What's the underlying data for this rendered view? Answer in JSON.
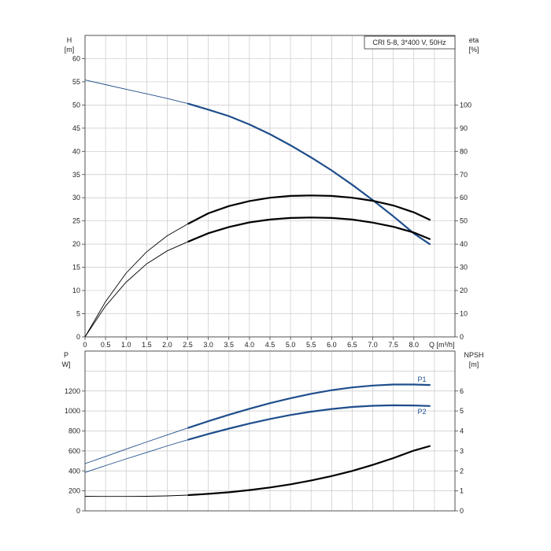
{
  "chart_data": [
    {
      "type": "line",
      "title": "CRI 5-8, 3*400 V, 50Hz",
      "ylabel_left": "H",
      "ylabel_left_unit": "[m]",
      "ylabel_right": "eta",
      "ylabel_right_unit": "[%]",
      "xlabel": "Q [m³/h]",
      "xlim": [
        0,
        9.0
      ],
      "ylim_left": [
        0,
        65
      ],
      "ylim_right": [
        0,
        130
      ],
      "grid": true,
      "x_ticks": [
        "0",
        "0.5",
        "1.0",
        "1.5",
        "2.0",
        "2.5",
        "3.0",
        "3.5",
        "4.0",
        "4.5",
        "5.0",
        "5.5",
        "6.0",
        "6.5",
        "7.0",
        "7.5",
        "8.0"
      ],
      "y_ticks_left": [
        "0",
        "5",
        "10",
        "15",
        "20",
        "25",
        "30",
        "35",
        "40",
        "45",
        "50",
        "55",
        "60"
      ],
      "y_ticks_right": [
        "0",
        "10",
        "20",
        "30",
        "40",
        "50",
        "60",
        "70",
        "80",
        "90",
        "100"
      ],
      "series": [
        {
          "axis": "left",
          "color": "#1f4e8c",
          "x": [
            0,
            0.5,
            1.0,
            1.5,
            2.0,
            2.5,
            3.0,
            3.5,
            4.0,
            4.5,
            5.0,
            5.5,
            6.0,
            6.5,
            7.0,
            7.5,
            8.0,
            8.4
          ],
          "y": [
            55.4,
            54.4,
            53.4,
            52.4,
            51.4,
            50.3,
            49.0,
            47.6,
            45.8,
            43.7,
            41.3,
            38.7,
            35.9,
            32.8,
            29.5,
            26.0,
            22.3,
            19.9
          ]
        },
        {
          "axis": "right",
          "color": "#000000",
          "x": [
            0,
            0.5,
            1.0,
            1.5,
            2.0,
            2.5,
            3.0,
            3.5,
            4.0,
            4.5,
            5.0,
            5.5,
            6.0,
            6.5,
            7.0,
            7.5,
            8.0,
            8.4
          ],
          "y": [
            0,
            15.2,
            27.5,
            36.7,
            43.6,
            48.7,
            53.3,
            56.4,
            58.6,
            60.0,
            60.8,
            61.0,
            60.8,
            60.0,
            58.7,
            56.7,
            53.7,
            50.4
          ]
        },
        {
          "axis": "right",
          "color": "#000000",
          "x": [
            0,
            0.5,
            1.0,
            1.5,
            2.0,
            2.5,
            3.0,
            3.5,
            4.0,
            4.5,
            5.0,
            5.5,
            6.0,
            6.5,
            7.0,
            7.5,
            8.0,
            8.4
          ],
          "y": [
            0,
            13.3,
            23.6,
            31.5,
            37.1,
            41.0,
            44.7,
            47.4,
            49.4,
            50.6,
            51.3,
            51.5,
            51.3,
            50.6,
            49.3,
            47.5,
            45.0,
            42.1
          ]
        }
      ]
    },
    {
      "type": "line",
      "ylabel_left": "P",
      "ylabel_left_unit": "W]",
      "ylabel_right": "NPSH",
      "ylabel_right_unit": "[m]",
      "xlim": [
        0,
        9.0
      ],
      "ylim_left": [
        0,
        1600
      ],
      "ylim_right": [
        0,
        8
      ],
      "grid": true,
      "y_ticks_left": [
        "0",
        "200",
        "400",
        "600",
        "800",
        "1000",
        "1200"
      ],
      "y_ticks_right": [
        "0",
        "1",
        "2",
        "3",
        "4",
        "5",
        "6"
      ],
      "series": [
        {
          "name": "P1",
          "axis": "left",
          "color": "#1f4e8c",
          "x": [
            0,
            0.5,
            1.0,
            1.5,
            2.0,
            2.5,
            3.0,
            3.5,
            4.0,
            4.5,
            5.0,
            5.5,
            6.0,
            6.5,
            7.0,
            7.5,
            8.0,
            8.4
          ],
          "y": [
            473,
            545,
            618,
            690,
            760,
            830,
            898,
            962,
            1022,
            1078,
            1128,
            1172,
            1208,
            1236,
            1255,
            1265,
            1265,
            1260
          ]
        },
        {
          "name": "P2",
          "axis": "left",
          "color": "#1f4e8c",
          "x": [
            0,
            0.5,
            1.0,
            1.5,
            2.0,
            2.5,
            3.0,
            3.5,
            4.0,
            4.5,
            5.0,
            5.5,
            6.0,
            6.5,
            7.0,
            7.5,
            8.0,
            8.4
          ],
          "y": [
            385,
            453,
            520,
            585,
            650,
            712,
            770,
            824,
            874,
            920,
            960,
            993,
            1020,
            1040,
            1052,
            1057,
            1055,
            1050
          ]
        },
        {
          "axis": "right",
          "color": "#000000",
          "x": [
            0,
            0.5,
            1.0,
            1.5,
            2.0,
            2.5,
            3.0,
            3.5,
            4.0,
            4.5,
            5.0,
            5.5,
            6.0,
            6.5,
            7.0,
            7.5,
            8.0,
            8.4
          ],
          "y": [
            0.73,
            0.72,
            0.72,
            0.73,
            0.75,
            0.79,
            0.85,
            0.93,
            1.04,
            1.17,
            1.33,
            1.52,
            1.74,
            2.0,
            2.3,
            2.64,
            3.02,
            3.25
          ]
        }
      ]
    }
  ]
}
